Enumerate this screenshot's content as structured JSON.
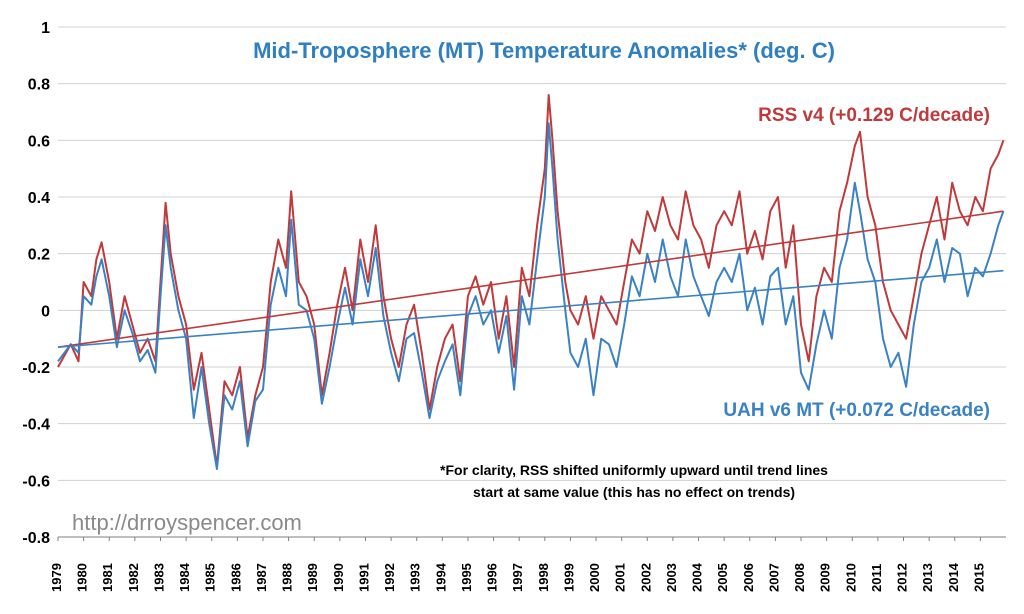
{
  "chart_data": {
    "type": "line",
    "title": "Mid-Troposphere (MT) Temperature Anomalies* (deg. C)",
    "xlabel": "",
    "ylabel": "",
    "xlim": [
      1979,
      2016
    ],
    "ylim": [
      -0.8,
      1
    ],
    "yticks": [
      -0.8,
      -0.6,
      -0.4,
      -0.2,
      0,
      0.2,
      0.4,
      0.6,
      0.8,
      1
    ],
    "ytick_labels": [
      "-0.8",
      "-0.6",
      "-0.4",
      "-0.2",
      "0",
      "0.2",
      "0.4",
      "0.6",
      "0.8",
      "1"
    ],
    "xtick_labels": [
      "1979",
      "1980",
      "1981",
      "1982",
      "1983",
      "1984",
      "1985",
      "1986",
      "1987",
      "1988",
      "1989",
      "1990",
      "1991",
      "1992",
      "1993",
      "1994",
      "1995",
      "1996",
      "1997",
      "1998",
      "1999",
      "2000",
      "2001",
      "2002",
      "2003",
      "2004",
      "2005",
      "2006",
      "2007",
      "2008",
      "2009",
      "2010",
      "2011",
      "2012",
      "2013",
      "2014",
      "2015"
    ],
    "grid": true,
    "series": [
      {
        "name": "RSS v4",
        "label": "RSS v4 (+0.129 C/decade)",
        "color": "#c0393b",
        "trend": {
          "start": [
            1979.0,
            -0.13
          ],
          "end": [
            2015.9,
            0.35
          ]
        },
        "x": [
          1979.0,
          1979.5,
          1979.8,
          1980.0,
          1980.3,
          1980.5,
          1980.7,
          1981.0,
          1981.3,
          1981.6,
          1981.9,
          1982.2,
          1982.5,
          1982.8,
          1983.0,
          1983.2,
          1983.4,
          1983.7,
          1984.0,
          1984.3,
          1984.6,
          1984.9,
          1985.2,
          1985.5,
          1985.8,
          1986.1,
          1986.4,
          1986.7,
          1987.0,
          1987.3,
          1987.6,
          1987.9,
          1988.1,
          1988.4,
          1988.7,
          1989.0,
          1989.3,
          1989.6,
          1989.9,
          1990.2,
          1990.5,
          1990.8,
          1991.1,
          1991.4,
          1991.7,
          1992.0,
          1992.3,
          1992.6,
          1992.9,
          1993.2,
          1993.5,
          1993.8,
          1994.1,
          1994.4,
          1994.7,
          1995.0,
          1995.3,
          1995.6,
          1995.9,
          1996.2,
          1996.5,
          1996.8,
          1997.1,
          1997.4,
          1997.7,
          1998.0,
          1998.15,
          1998.3,
          1998.5,
          1998.8,
          1999.0,
          1999.3,
          1999.6,
          1999.9,
          2000.2,
          2000.5,
          2000.8,
          2001.1,
          2001.4,
          2001.7,
          2002.0,
          2002.3,
          2002.6,
          2002.9,
          2003.2,
          2003.5,
          2003.8,
          2004.1,
          2004.4,
          2004.7,
          2005.0,
          2005.3,
          2005.6,
          2005.9,
          2006.2,
          2006.5,
          2006.8,
          2007.1,
          2007.4,
          2007.7,
          2008.0,
          2008.3,
          2008.6,
          2008.9,
          2009.2,
          2009.5,
          2009.8,
          2010.1,
          2010.3,
          2010.6,
          2010.9,
          2011.2,
          2011.5,
          2011.8,
          2012.1,
          2012.4,
          2012.7,
          2013.0,
          2013.3,
          2013.6,
          2013.9,
          2014.2,
          2014.5,
          2014.8,
          2015.1,
          2015.4,
          2015.7,
          2015.9
        ],
        "y": [
          -0.2,
          -0.12,
          -0.18,
          0.1,
          0.05,
          0.18,
          0.24,
          0.1,
          -0.1,
          0.05,
          -0.05,
          -0.15,
          -0.1,
          -0.18,
          0.1,
          0.38,
          0.2,
          0.05,
          -0.05,
          -0.28,
          -0.15,
          -0.35,
          -0.55,
          -0.25,
          -0.3,
          -0.2,
          -0.45,
          -0.3,
          -0.2,
          0.1,
          0.25,
          0.15,
          0.42,
          0.1,
          0.05,
          -0.05,
          -0.3,
          -0.15,
          0.02,
          0.15,
          0.0,
          0.25,
          0.1,
          0.3,
          0.05,
          -0.1,
          -0.2,
          -0.05,
          0.02,
          -0.15,
          -0.35,
          -0.2,
          -0.1,
          -0.05,
          -0.25,
          0.05,
          0.12,
          0.02,
          0.1,
          -0.1,
          0.05,
          -0.2,
          0.15,
          0.05,
          0.3,
          0.5,
          0.76,
          0.6,
          0.35,
          0.1,
          0.0,
          -0.05,
          0.05,
          -0.1,
          0.05,
          0.0,
          -0.05,
          0.1,
          0.25,
          0.2,
          0.35,
          0.28,
          0.4,
          0.3,
          0.25,
          0.42,
          0.3,
          0.25,
          0.15,
          0.3,
          0.35,
          0.3,
          0.42,
          0.2,
          0.28,
          0.18,
          0.35,
          0.4,
          0.15,
          0.3,
          -0.05,
          -0.18,
          0.05,
          0.15,
          0.1,
          0.35,
          0.45,
          0.58,
          0.63,
          0.4,
          0.3,
          0.1,
          0.0,
          -0.05,
          -0.1,
          0.05,
          0.2,
          0.3,
          0.4,
          0.25,
          0.45,
          0.35,
          0.3,
          0.4,
          0.35,
          0.5,
          0.55,
          0.6
        ]
      },
      {
        "name": "UAH v6 MT",
        "label": "UAH v6 MT (+0.072 C/decade)",
        "color": "#3a82c4",
        "trend": {
          "start": [
            1979.0,
            -0.13
          ],
          "end": [
            2015.9,
            0.14
          ]
        },
        "x": [
          1979.0,
          1979.5,
          1979.8,
          1980.0,
          1980.3,
          1980.5,
          1980.7,
          1981.0,
          1981.3,
          1981.6,
          1981.9,
          1982.2,
          1982.5,
          1982.8,
          1983.0,
          1983.2,
          1983.4,
          1983.7,
          1984.0,
          1984.3,
          1984.6,
          1984.9,
          1985.2,
          1985.5,
          1985.8,
          1986.1,
          1986.4,
          1986.7,
          1987.0,
          1987.3,
          1987.6,
          1987.9,
          1988.1,
          1988.4,
          1988.7,
          1989.0,
          1989.3,
          1989.6,
          1989.9,
          1990.2,
          1990.5,
          1990.8,
          1991.1,
          1991.4,
          1991.7,
          1992.0,
          1992.3,
          1992.6,
          1992.9,
          1993.2,
          1993.5,
          1993.8,
          1994.1,
          1994.4,
          1994.7,
          1995.0,
          1995.3,
          1995.6,
          1995.9,
          1996.2,
          1996.5,
          1996.8,
          1997.1,
          1997.4,
          1997.7,
          1998.0,
          1998.15,
          1998.3,
          1998.5,
          1998.8,
          1999.0,
          1999.3,
          1999.6,
          1999.9,
          2000.2,
          2000.5,
          2000.8,
          2001.1,
          2001.4,
          2001.7,
          2002.0,
          2002.3,
          2002.6,
          2002.9,
          2003.2,
          2003.5,
          2003.8,
          2004.1,
          2004.4,
          2004.7,
          2005.0,
          2005.3,
          2005.6,
          2005.9,
          2006.2,
          2006.5,
          2006.8,
          2007.1,
          2007.4,
          2007.7,
          2008.0,
          2008.3,
          2008.6,
          2008.9,
          2009.2,
          2009.5,
          2009.8,
          2010.1,
          2010.3,
          2010.6,
          2010.9,
          2011.2,
          2011.5,
          2011.8,
          2012.1,
          2012.4,
          2012.7,
          2013.0,
          2013.3,
          2013.6,
          2013.9,
          2014.2,
          2014.5,
          2014.8,
          2015.1,
          2015.4,
          2015.7,
          2015.9
        ],
        "y": [
          -0.18,
          -0.12,
          -0.15,
          0.05,
          0.02,
          0.12,
          0.18,
          0.05,
          -0.13,
          0.0,
          -0.08,
          -0.18,
          -0.14,
          -0.22,
          0.05,
          0.3,
          0.15,
          0.0,
          -0.1,
          -0.38,
          -0.2,
          -0.4,
          -0.56,
          -0.3,
          -0.35,
          -0.25,
          -0.48,
          -0.32,
          -0.28,
          0.02,
          0.15,
          0.05,
          0.32,
          0.02,
          0.0,
          -0.1,
          -0.33,
          -0.2,
          -0.05,
          0.08,
          -0.05,
          0.18,
          0.05,
          0.22,
          -0.02,
          -0.15,
          -0.25,
          -0.1,
          -0.08,
          -0.22,
          -0.38,
          -0.25,
          -0.18,
          -0.12,
          -0.3,
          -0.02,
          0.05,
          -0.05,
          0.0,
          -0.15,
          -0.02,
          -0.28,
          0.05,
          -0.05,
          0.18,
          0.4,
          0.66,
          0.5,
          0.25,
          0.0,
          -0.15,
          -0.2,
          -0.1,
          -0.3,
          -0.1,
          -0.12,
          -0.2,
          -0.05,
          0.12,
          0.05,
          0.2,
          0.1,
          0.25,
          0.12,
          0.05,
          0.25,
          0.12,
          0.05,
          -0.02,
          0.1,
          0.15,
          0.1,
          0.2,
          0.0,
          0.08,
          -0.05,
          0.12,
          0.15,
          -0.05,
          0.05,
          -0.22,
          -0.28,
          -0.12,
          0.0,
          -0.1,
          0.15,
          0.25,
          0.45,
          0.35,
          0.18,
          0.1,
          -0.1,
          -0.2,
          -0.15,
          -0.27,
          -0.05,
          0.1,
          0.15,
          0.25,
          0.1,
          0.22,
          0.2,
          0.05,
          0.15,
          0.12,
          0.2,
          0.3,
          0.35
        ]
      }
    ],
    "annotations": {
      "note_line1": "*For clarity, RSS shifted uniformly upward until trend lines",
      "note_line2": "start at same value (this has no effect on trends)",
      "watermark": "http://drroyspencer.com"
    }
  }
}
